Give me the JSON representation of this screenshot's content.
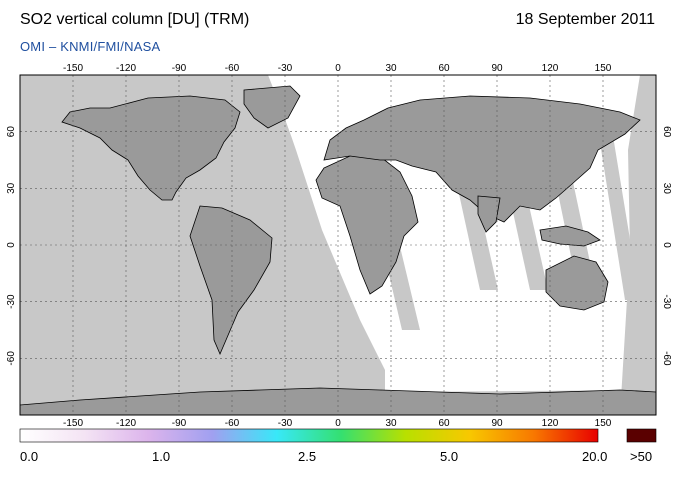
{
  "header": {
    "title": "SO2 vertical column [DU] (TRM)",
    "date": "18 September 2011",
    "credit": "OMI  –  KNMI/FMI/NASA"
  },
  "map": {
    "projection": "equirectangular",
    "lon_range": [
      -180,
      180
    ],
    "lat_range": [
      -90,
      90
    ],
    "lon_ticks": [
      "-150",
      "-120",
      "-90",
      "-60",
      "-30",
      "0",
      "30",
      "60",
      "90",
      "120",
      "150"
    ],
    "lat_ticks": [
      "60",
      "30",
      "0",
      "-30",
      "-60"
    ],
    "colors": {
      "no_data": "#c8c8c8",
      "land": "#9a9a9a",
      "coast": "#000000",
      "grid": "#5a5a5a"
    }
  },
  "colorbar": {
    "labels": [
      "0.0",
      "1.0",
      "2.5",
      "5.0",
      "20.0"
    ],
    "overflow_label": ">50",
    "overflow_color": "#5a0000",
    "gradient_stops": [
      "#ffffff",
      "#f4e4f4",
      "#dcb4ec",
      "#a0a0f0",
      "#38e8f8",
      "#34e070",
      "#b8e000",
      "#f8c800",
      "#f87800",
      "#e80000"
    ]
  }
}
